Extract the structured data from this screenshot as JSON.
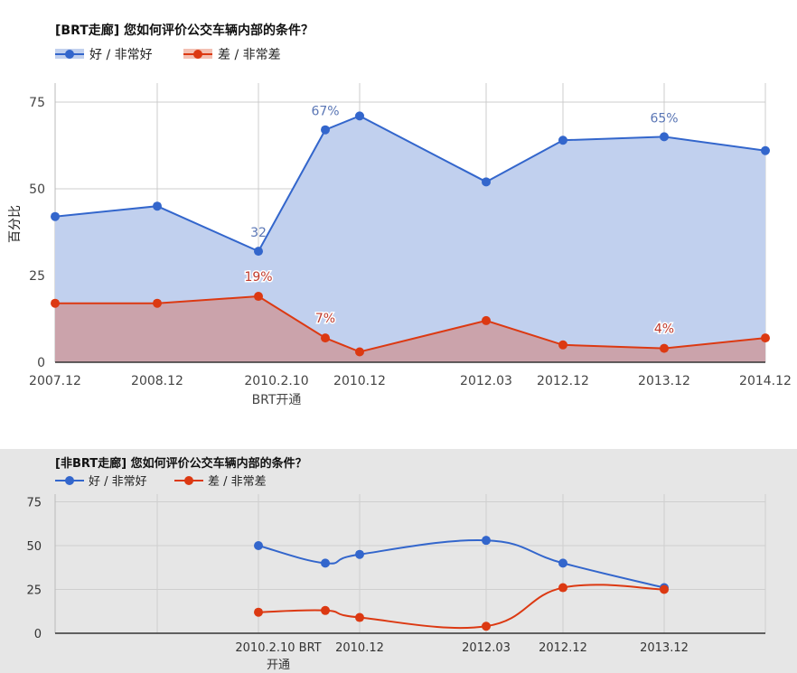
{
  "colors": {
    "good": "#3366cc",
    "good_fill": "#c1d0ee",
    "poor": "#dc3912",
    "poor_fill": "#cba3ab",
    "grid": "#cccccc",
    "panel2_bg": "#e6e6e6"
  },
  "chart_data": [
    {
      "type": "area",
      "title": "[BRT走廊] 您如何评价公交车辆内部的条件？",
      "ylabel": "百分比",
      "xlabel": "",
      "ylim": [
        0,
        80
      ],
      "yticks": [
        "0",
        "25",
        "50",
        "75"
      ],
      "grid": true,
      "legend_position": "top-left",
      "categories": [
        "2007.12",
        "2008.12",
        "2010.2.10",
        "2010.2.10+",
        "2010.12",
        "2012.03",
        "2012.12",
        "2013.12",
        "2014.12"
      ],
      "x_tick_labels": [
        "2007.12",
        "2008.12",
        "2010.2.10",
        "2010.12",
        "2012.03",
        "2012.12",
        "2013.12",
        "2014.12"
      ],
      "x_annotation": "BRT开通",
      "series": [
        {
          "name": "好 / 非常好",
          "values": [
            42,
            45,
            32,
            67,
            71,
            52,
            64,
            65,
            61
          ]
        },
        {
          "name": "差 / 非常差",
          "values": [
            17,
            17,
            19,
            7,
            3,
            12,
            5,
            4,
            7
          ]
        }
      ],
      "data_labels": {
        "good": [
          "32",
          "67%",
          "65%"
        ],
        "poor": [
          "19%",
          "7%",
          "4%"
        ]
      }
    },
    {
      "type": "line",
      "title": "[非BRT走廊] 您如何评价公交车辆内部的条件？",
      "xlabel": "",
      "ylabel": "",
      "ylim": [
        0,
        75
      ],
      "yticks": [
        "0",
        "25",
        "50",
        "75"
      ],
      "grid": true,
      "legend_position": "top-left",
      "categories": [
        "2010.2.10",
        "2010.2.10+",
        "2010.12",
        "2012.03",
        "2012.12",
        "2013.12"
      ],
      "x_tick_labels": [
        "2010.2.10 BRT",
        "2010.12",
        "2012.03",
        "2012.12",
        "2013.12"
      ],
      "x_tick_label_line2": "开通",
      "series": [
        {
          "name": "好 / 非常好",
          "values": [
            50,
            40,
            45,
            53,
            40,
            26
          ]
        },
        {
          "name": "差 / 非常差",
          "values": [
            12,
            13,
            9,
            4,
            26,
            25
          ]
        }
      ]
    }
  ]
}
